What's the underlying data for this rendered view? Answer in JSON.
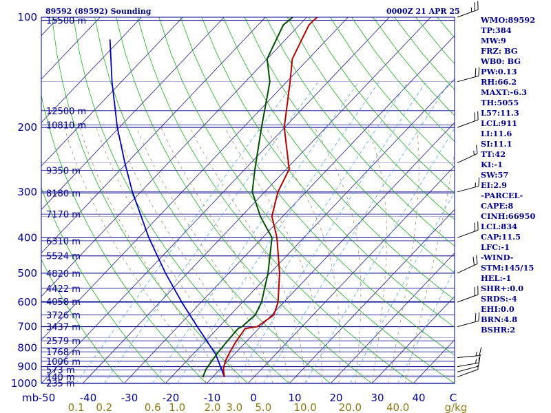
{
  "header": {
    "station": "89592 (89592) Sounding",
    "time": "0000Z 21 APR 25"
  },
  "indices": [
    "WMO:89592",
    "TP:384",
    "MW:9",
    "FRZ: BG",
    "WB0: BG",
    "PW:0.13",
    "RH:66.2",
    "MAXT:-6.3",
    "TH:5055",
    "L57:11.3",
    "LCL:911",
    "LI:11.6",
    "SI:11.1",
    "TT:42",
    "KI:-1",
    "SW:57",
    "EI:2.9",
    "-PARCEL-",
    "CAPE:8",
    "CINH:66950",
    "LCL:834",
    "CAP:11.5",
    "LFC:-1",
    "-WIND-",
    "STM:145/15",
    "HEL:-1",
    "SHR+:0.0",
    "SRDS:-4",
    "EHI:0.0",
    "BRN:4.8",
    "BSHR:2"
  ],
  "colors": {
    "axis": "#00008b",
    "isotherm": "#1a1a8c",
    "dry_adiabat": "#22aa22",
    "moist_adiabat": "#aa8f6a",
    "mixing_ratio": "#55aadd",
    "temperature": "#b00000",
    "dewpoint": "#004d00",
    "parcel": "#0000b0",
    "wind": "#000000"
  },
  "chart_data": {
    "type": "skew-t",
    "title": "89592 (89592) Sounding",
    "xlabel": "C",
    "ylabel": "mb",
    "pressure_range": [
      1000,
      100
    ],
    "temperature_range": [
      -50,
      50
    ],
    "pressure_labels": [
      "100",
      "200",
      "300",
      "400",
      "500",
      "600",
      "700",
      "800",
      "900",
      "1000"
    ],
    "temperature_labels": [
      "-50",
      "-40",
      "-30",
      "-20",
      "-10",
      "0",
      "10",
      "20",
      "30",
      "40"
    ],
    "temperature_unit": "C",
    "mixing_ratio_labels": [
      "0.1",
      "0.2",
      "0.6",
      "1.0",
      "2.0",
      "3.0",
      "5.0",
      "10.0",
      "20.0",
      "40.0"
    ],
    "mixing_ratio_unit": "g/kg",
    "heights": [
      {
        "p": 102,
        "label": "15500 m"
      },
      {
        "p": 180,
        "label": "12500 m"
      },
      {
        "p": 197,
        "label": "10810 m"
      },
      {
        "p": 262,
        "label": "9350 m"
      },
      {
        "p": 302,
        "label": "8180 m"
      },
      {
        "p": 345,
        "label": "7170 m"
      },
      {
        "p": 408,
        "label": "6310 m"
      },
      {
        "p": 448,
        "label": "5524 m"
      },
      {
        "p": 500,
        "label": "4820 m"
      },
      {
        "p": 550,
        "label": "4422 m"
      },
      {
        "p": 598,
        "label": "4058 m"
      },
      {
        "p": 650,
        "label": "3726 m"
      },
      {
        "p": 700,
        "label": "3437 m"
      },
      {
        "p": 765,
        "label": "2579 m"
      },
      {
        "p": 820,
        "label": "1768 m"
      },
      {
        "p": 870,
        "label": "1006 m"
      },
      {
        "p": 918,
        "label": "573 m"
      },
      {
        "p": 960,
        "label": "140 m"
      },
      {
        "p": 998,
        "label": "235 m"
      }
    ],
    "temperature": [
      {
        "p": 960,
        "t": -7.2
      },
      {
        "p": 915,
        "t": -9.2
      },
      {
        "p": 870,
        "t": -10.6
      },
      {
        "p": 820,
        "t": -11.6
      },
      {
        "p": 770,
        "t": -12.5
      },
      {
        "p": 708,
        "t": -13.3
      },
      {
        "p": 700,
        "t": -10.8
      },
      {
        "p": 650,
        "t": -9.5
      },
      {
        "p": 600,
        "t": -11.4
      },
      {
        "p": 500,
        "t": -17.7
      },
      {
        "p": 400,
        "t": -26.5
      },
      {
        "p": 350,
        "t": -32.6
      },
      {
        "p": 300,
        "t": -36.8
      },
      {
        "p": 260,
        "t": -39.3
      },
      {
        "p": 200,
        "t": -50.1
      },
      {
        "p": 150,
        "t": -59.2
      },
      {
        "p": 130,
        "t": -63.9
      },
      {
        "p": 105,
        "t": -67.7
      },
      {
        "p": 100,
        "t": -67.5
      }
    ],
    "dewpoint": [
      {
        "p": 960,
        "t": -12.4
      },
      {
        "p": 915,
        "t": -13.4
      },
      {
        "p": 870,
        "t": -13.9
      },
      {
        "p": 820,
        "t": -14.4
      },
      {
        "p": 770,
        "t": -14.7
      },
      {
        "p": 708,
        "t": -15.0
      },
      {
        "p": 700,
        "t": -14.5
      },
      {
        "p": 650,
        "t": -14.0
      },
      {
        "p": 600,
        "t": -15.4
      },
      {
        "p": 500,
        "t": -20.5
      },
      {
        "p": 400,
        "t": -27.7
      },
      {
        "p": 350,
        "t": -35.4
      },
      {
        "p": 300,
        "t": -43.0
      },
      {
        "p": 260,
        "t": -47.6
      },
      {
        "p": 200,
        "t": -55.6
      },
      {
        "p": 150,
        "t": -64.1
      },
      {
        "p": 130,
        "t": -70.0
      },
      {
        "p": 105,
        "t": -73.9
      },
      {
        "p": 100,
        "t": -73.4
      }
    ],
    "parcel": [
      {
        "p": 960,
        "t": -7.2
      },
      {
        "p": 900,
        "t": -10.5
      },
      {
        "p": 834,
        "t": -14.4
      },
      {
        "p": 800,
        "t": -17.0
      },
      {
        "p": 750,
        "t": -21.0
      },
      {
        "p": 700,
        "t": -25.3
      },
      {
        "p": 600,
        "t": -34.7
      },
      {
        "p": 500,
        "t": -45.3
      },
      {
        "p": 400,
        "t": -57.5
      },
      {
        "p": 300,
        "t": -72.0
      },
      {
        "p": 250,
        "t": -80.5
      },
      {
        "p": 200,
        "t": -90.5
      },
      {
        "p": 150,
        "t": -102.3
      },
      {
        "p": 115,
        "t": -112.5
      }
    ],
    "wind": [
      {
        "p": 960,
        "dir": 250,
        "spd": 5
      },
      {
        "p": 930,
        "dir": 255,
        "spd": 10
      },
      {
        "p": 900,
        "dir": 260,
        "spd": 15
      },
      {
        "p": 850,
        "dir": 265,
        "spd": 15
      },
      {
        "p": 700,
        "dir": 255,
        "spd": 20
      },
      {
        "p": 600,
        "dir": 250,
        "spd": 20
      },
      {
        "p": 500,
        "dir": 245,
        "spd": 20
      },
      {
        "p": 400,
        "dir": 250,
        "spd": 20
      },
      {
        "p": 300,
        "dir": 255,
        "spd": 15
      },
      {
        "p": 250,
        "dir": 245,
        "spd": 15
      },
      {
        "p": 200,
        "dir": 250,
        "spd": 20
      },
      {
        "p": 150,
        "dir": 255,
        "spd": 20
      },
      {
        "p": 100,
        "dir": 250,
        "spd": 25
      }
    ]
  }
}
